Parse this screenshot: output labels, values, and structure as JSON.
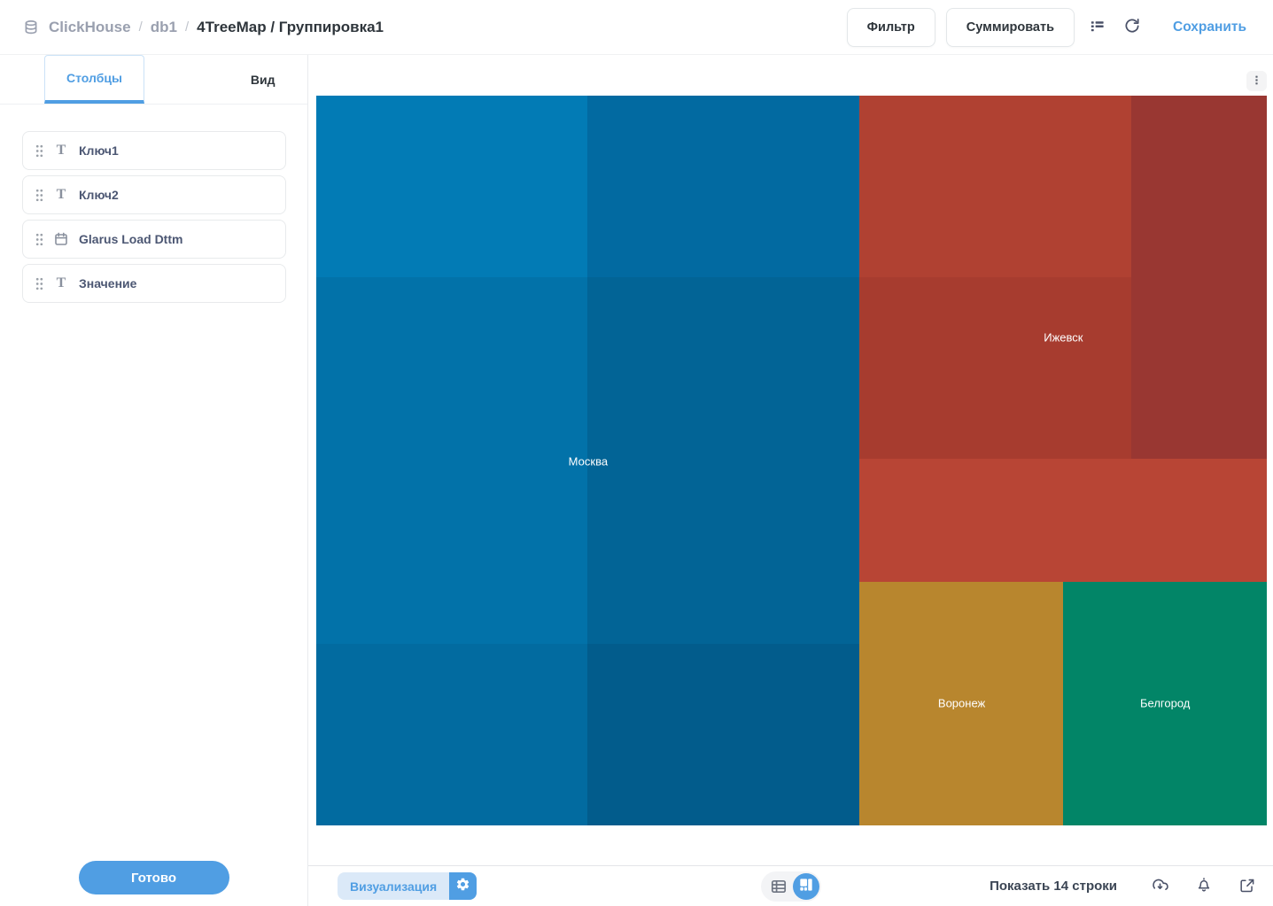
{
  "colors": {
    "accent": "#509ee3",
    "breadcrumb_gray": "#9aa0af",
    "title_dark": "#2e353b",
    "viz_button_bg": "#dbe9f8"
  },
  "header": {
    "breadcrumb": {
      "database": "ClickHouse",
      "sep1": "/",
      "schema": "db1",
      "sep2": "/",
      "title": "4TreeMap / Группировка1"
    },
    "filter_button": "Фильтр",
    "summarize_button": "Суммировать",
    "save_link": "Сохранить"
  },
  "sidebar": {
    "tabs": [
      {
        "label": "Столбцы",
        "active": true
      },
      {
        "label": "Вид",
        "active": false
      }
    ],
    "columns": [
      {
        "label": "Ключ1",
        "type": "text"
      },
      {
        "label": "Ключ2",
        "type": "text"
      },
      {
        "label": "Glarus Load Dttm",
        "type": "datetime"
      },
      {
        "label": "Значение",
        "type": "text"
      }
    ],
    "done_button": "Готово"
  },
  "footer": {
    "visualization_button": "Визуализация",
    "row_count_text": "Показать 14 строки"
  },
  "icons": {
    "text_type_glyph": "T"
  },
  "chart_data": {
    "type": "treemap",
    "title": "",
    "legend": "none",
    "groups": [
      {
        "name": "Москва",
        "area_share": 0.571,
        "base_color": "#0272a9",
        "label_pos": {
          "x": 0.286,
          "y": 0.501
        },
        "cells": [
          {
            "x": 0.0,
            "y": 0.0,
            "w": 0.285,
            "h": 0.249,
            "color": "#027bb5"
          },
          {
            "x": 0.285,
            "y": 0.0,
            "w": 0.286,
            "h": 0.249,
            "color": "#026aa1"
          },
          {
            "x": 0.0,
            "y": 0.249,
            "w": 0.285,
            "h": 0.502,
            "color": "#0272a9"
          },
          {
            "x": 0.285,
            "y": 0.249,
            "w": 0.286,
            "h": 0.502,
            "color": "#026496"
          },
          {
            "x": 0.0,
            "y": 0.751,
            "w": 0.285,
            "h": 0.249,
            "color": "#026ba0"
          },
          {
            "x": 0.285,
            "y": 0.751,
            "w": 0.286,
            "h": 0.249,
            "color": "#025c8c"
          }
        ]
      },
      {
        "name": "Ижевск",
        "area_share": 0.286,
        "base_color": "#a73c2f",
        "label_pos": {
          "x": 0.786,
          "y": 0.331
        },
        "cells": [
          {
            "x": 0.571,
            "y": 0.0,
            "w": 0.286,
            "h": 0.249,
            "color": "#b04132"
          },
          {
            "x": 0.571,
            "y": 0.249,
            "w": 0.286,
            "h": 0.249,
            "color": "#a73c2f"
          },
          {
            "x": 0.857,
            "y": 0.0,
            "w": 0.143,
            "h": 0.498,
            "color": "#993732"
          },
          {
            "x": 0.571,
            "y": 0.498,
            "w": 0.429,
            "h": 0.168,
            "color": "#b84535"
          }
        ]
      },
      {
        "name": "Воронеж",
        "area_share": 0.072,
        "base_color": "#b8862e",
        "label_pos": {
          "x": 0.679,
          "y": 0.832
        },
        "cells": [
          {
            "x": 0.571,
            "y": 0.666,
            "w": 0.215,
            "h": 0.334,
            "color": "#b8862e"
          }
        ]
      },
      {
        "name": "Белгород",
        "area_share": 0.072,
        "base_color": "#028567",
        "label_pos": {
          "x": 0.893,
          "y": 0.832
        },
        "cells": [
          {
            "x": 0.786,
            "y": 0.666,
            "w": 0.214,
            "h": 0.334,
            "color": "#028567"
          }
        ]
      }
    ]
  }
}
